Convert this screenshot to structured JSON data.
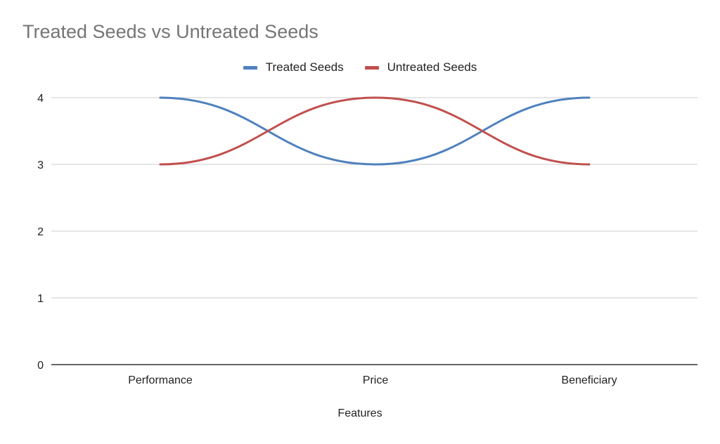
{
  "chart_data": {
    "type": "line",
    "title": "Treated Seeds vs Untreated Seeds",
    "xlabel": "Features",
    "ylabel": "",
    "categories": [
      "Performance",
      "Price",
      "Beneficiary"
    ],
    "series": [
      {
        "name": "Treated Seeds",
        "values": [
          4,
          3,
          4
        ],
        "color": "#4f81bd"
      },
      {
        "name": "Untreated Seeds",
        "values": [
          3,
          4,
          3
        ],
        "color": "#c0504d"
      }
    ],
    "ylim": [
      0,
      4
    ],
    "yticks": [
      "0",
      "1",
      "2",
      "3",
      "4"
    ],
    "grid": true,
    "smooth": true,
    "legend_position": "top"
  }
}
